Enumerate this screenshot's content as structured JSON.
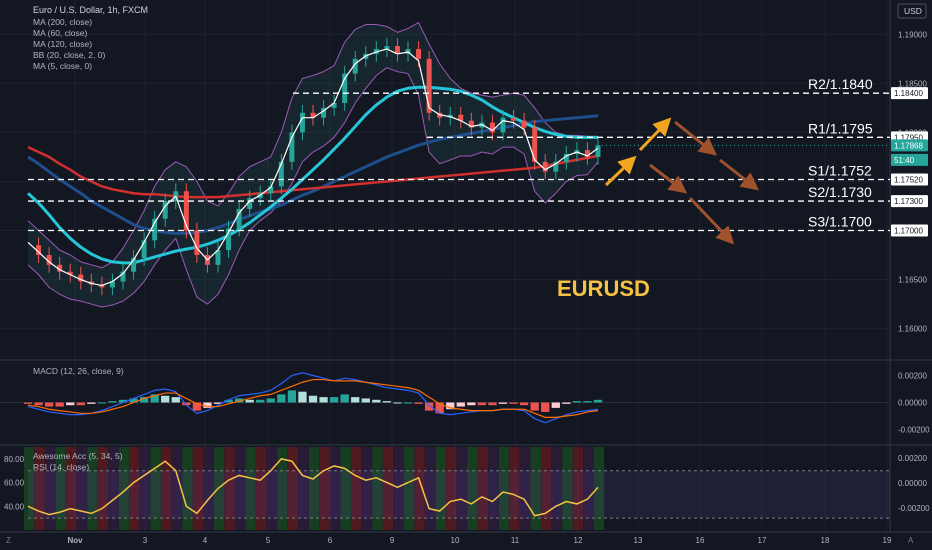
{
  "header": {
    "symbol_title": "Euro / U.S. Dollar, 1h, FXCM",
    "currency": "USD",
    "indicators": [
      "MA (200, close)",
      "MA (60, close)",
      "MA (120, close)",
      "BB (20, close, 2, 0)",
      "MA (5, close, 0)"
    ]
  },
  "main_label": "EURUSD",
  "colors": {
    "background": "#131722",
    "grid": "#1e222d",
    "text": "#d1d4dc",
    "ma200": "#d32f2f",
    "ma60": "#26c6da",
    "ma120": "#1e4e8c",
    "bb": "#9c59b6",
    "ma5": "#ffffff",
    "label_gold": "#f5c242",
    "bull": "#26a69a",
    "bear": "#ef5350",
    "arrow_up": "#f0a520",
    "arrow_down": "#a0522d"
  },
  "chart_data": [
    {
      "type": "line",
      "title": "EURUSD",
      "ylim": [
        1.157,
        1.1935
      ],
      "y_ticks": [
        "1.19000",
        "1.18500",
        "1.18000",
        "1.17500",
        "1.17000",
        "1.16500",
        "1.16000"
      ],
      "price_labels": [
        {
          "text": "1.18400",
          "value": 1.184,
          "bg": "#ffffff",
          "fg": "#131722"
        },
        {
          "text": "1.17950",
          "value": 1.1795,
          "bg": "#ffffff",
          "fg": "#131722"
        },
        {
          "text": "1.17868",
          "value": 1.17868,
          "bg": "#26a69a",
          "fg": "#ffffff"
        },
        {
          "text": "51:40",
          "value": 1.1772,
          "bg": "#26a69a",
          "fg": "#ffffff"
        },
        {
          "text": "1.17520",
          "value": 1.1752,
          "bg": "#ffffff",
          "fg": "#131722"
        },
        {
          "text": "1.17300",
          "value": 1.173,
          "bg": "#ffffff",
          "fg": "#131722"
        },
        {
          "text": "1.17000",
          "value": 1.17,
          "bg": "#ffffff",
          "fg": "#131722"
        }
      ],
      "levels": [
        {
          "name": "R2/1.1840",
          "value": 1.184
        },
        {
          "name": "R1/1.1795",
          "value": 1.1795
        },
        {
          "name": "S1/1.1752",
          "value": 1.1752
        },
        {
          "name": "S2/1.1730",
          "value": 1.173
        },
        {
          "name": "S3/1.1700",
          "value": 1.17
        }
      ],
      "price_path": [
        1.1685,
        1.1675,
        1.1665,
        1.1658,
        1.1655,
        1.1648,
        1.1645,
        1.1642,
        1.1648,
        1.1658,
        1.1672,
        1.169,
        1.1712,
        1.173,
        1.174,
        1.17,
        1.1675,
        1.1665,
        1.168,
        1.1702,
        1.1722,
        1.1733,
        1.1738,
        1.1745,
        1.177,
        1.18,
        1.182,
        1.1815,
        1.1825,
        1.183,
        1.186,
        1.1875,
        1.188,
        1.1885,
        1.1888,
        1.188,
        1.1885,
        1.1875,
        1.182,
        1.1815,
        1.1818,
        1.1812,
        1.1805,
        1.181,
        1.18,
        1.1815,
        1.1812,
        1.1805,
        1.177,
        1.176,
        1.177,
        1.1778,
        1.1782,
        1.1775,
        1.1787
      ],
      "ma5_path": [
        1.1688,
        1.1678,
        1.1668,
        1.166,
        1.1655,
        1.165,
        1.1646,
        1.1644,
        1.1648,
        1.1656,
        1.167,
        1.1688,
        1.1708,
        1.1725,
        1.1735,
        1.1705,
        1.1682,
        1.167,
        1.168,
        1.1698,
        1.1718,
        1.173,
        1.1736,
        1.1744,
        1.1768,
        1.1795,
        1.1815,
        1.1815,
        1.1822,
        1.183,
        1.1855,
        1.187,
        1.1878,
        1.1882,
        1.1885,
        1.188,
        1.1882,
        1.1873,
        1.1825,
        1.1818,
        1.1816,
        1.1812,
        1.1806,
        1.1808,
        1.1802,
        1.1812,
        1.181,
        1.1803,
        1.1772,
        1.1762,
        1.1768,
        1.1776,
        1.178,
        1.1776,
        1.1784
      ],
      "ma200_path": [
        1.1785,
        1.178,
        1.1775,
        1.1768,
        1.1762,
        1.1755,
        1.175,
        1.1745,
        1.1742,
        1.174,
        1.1738,
        1.1737,
        1.1737,
        1.1736,
        1.1735,
        1.1734,
        1.1734,
        1.1734,
        1.1734,
        1.1735,
        1.1736,
        1.1737,
        1.1738,
        1.1739,
        1.174,
        1.1741,
        1.1742,
        1.1743,
        1.1744,
        1.1745,
        1.1746,
        1.1747,
        1.1748,
        1.1749,
        1.175,
        1.1751,
        1.1752,
        1.1753,
        1.1754,
        1.1755,
        1.1756,
        1.1757,
        1.1758,
        1.1759,
        1.176,
        1.1761,
        1.1762,
        1.1763,
        1.1764,
        1.1766,
        1.1768,
        1.177,
        1.1772,
        1.1774,
        1.1776
      ],
      "ma120_path": [
        1.1775,
        1.1768,
        1.176,
        1.1752,
        1.1745,
        1.1738,
        1.173,
        1.1724,
        1.1718,
        1.1712,
        1.1706,
        1.1702,
        1.17,
        1.1698,
        1.1697,
        1.1697,
        1.1698,
        1.17,
        1.1703,
        1.1707,
        1.1711,
        1.1715,
        1.1719,
        1.1722,
        1.1726,
        1.1731,
        1.1736,
        1.174,
        1.1745,
        1.175,
        1.1755,
        1.176,
        1.1765,
        1.177,
        1.1775,
        1.1779,
        1.1783,
        1.1787,
        1.179,
        1.1793,
        1.1795,
        1.1797,
        1.1799,
        1.1801,
        1.1803,
        1.1805,
        1.1807,
        1.1809,
        1.1811,
        1.1812,
        1.1813,
        1.1814,
        1.1815,
        1.1816,
        1.1817
      ],
      "ma60_path": [
        1.1738,
        1.1728,
        1.1716,
        1.1703,
        1.1692,
        1.1683,
        1.1676,
        1.1671,
        1.1668,
        1.1667,
        1.1667,
        1.167,
        1.1673,
        1.1676,
        1.1679,
        1.1681,
        1.1683,
        1.1686,
        1.169,
        1.1695,
        1.1701,
        1.1708,
        1.1716,
        1.1724,
        1.1733,
        1.1742,
        1.1752,
        1.1762,
        1.1772,
        1.1783,
        1.1794,
        1.1806,
        1.1818,
        1.1828,
        1.1836,
        1.1842,
        1.1845,
        1.1846,
        1.1846,
        1.1845,
        1.1844,
        1.1842,
        1.1838,
        1.1833,
        1.1826,
        1.182,
        1.1815,
        1.181,
        1.1805,
        1.1801,
        1.1798,
        1.1796,
        1.1795,
        1.1795,
        1.1795
      ],
      "bb_upper_path": [
        1.171,
        1.17,
        1.169,
        1.168,
        1.1675,
        1.1668,
        1.1665,
        1.1662,
        1.1668,
        1.1682,
        1.17,
        1.172,
        1.1745,
        1.1762,
        1.177,
        1.1765,
        1.175,
        1.173,
        1.1725,
        1.1738,
        1.1755,
        1.1765,
        1.177,
        1.1775,
        1.18,
        1.1835,
        1.1855,
        1.1858,
        1.1862,
        1.1868,
        1.1892,
        1.1905,
        1.191,
        1.191,
        1.1908,
        1.1902,
        1.1906,
        1.1912,
        1.189,
        1.187,
        1.1855,
        1.1845,
        1.184,
        1.1838,
        1.1836,
        1.1838,
        1.184,
        1.1838,
        1.1825,
        1.181,
        1.18,
        1.1797,
        1.1797,
        1.1796,
        1.1796
      ],
      "bb_lower_path": [
        1.1665,
        1.1655,
        1.1642,
        1.1635,
        1.163,
        1.1628,
        1.1625,
        1.1622,
        1.1624,
        1.1628,
        1.1636,
        1.1648,
        1.1665,
        1.168,
        1.1692,
        1.166,
        1.1632,
        1.1625,
        1.1635,
        1.1655,
        1.168,
        1.17,
        1.171,
        1.1718,
        1.173,
        1.1748,
        1.177,
        1.178,
        1.1786,
        1.1795,
        1.181,
        1.183,
        1.1845,
        1.1858,
        1.1866,
        1.1862,
        1.186,
        1.1838,
        1.178,
        1.1768,
        1.1772,
        1.1776,
        1.1776,
        1.178,
        1.1778,
        1.1785,
        1.1785,
        1.1778,
        1.174,
        1.1728,
        1.1738,
        1.175,
        1.1756,
        1.1757,
        1.177
      ]
    },
    {
      "type": "bar",
      "title": "MACD (12, 26, close, 9)",
      "ylim": [
        -0.003,
        0.003
      ],
      "y_ticks": [
        "0.00200",
        "0.00000",
        "-0.00200"
      ],
      "histogram": [
        -0.0001,
        -0.0002,
        -0.0003,
        -0.0003,
        -0.0002,
        -0.0002,
        -0.0001,
        0.0,
        0.0001,
        0.0002,
        0.0003,
        0.0004,
        0.0006,
        0.0005,
        0.0004,
        -0.0002,
        -0.0006,
        -0.0004,
        -0.0001,
        0.0002,
        0.0003,
        0.0002,
        0.0002,
        0.0003,
        0.0006,
        0.0009,
        0.0008,
        0.0005,
        0.0004,
        0.0004,
        0.0006,
        0.0004,
        0.0003,
        0.0002,
        0.0001,
        0.0,
        0.0,
        -0.0001,
        -0.0006,
        -0.0008,
        -0.0005,
        -0.0003,
        -0.0002,
        -0.0002,
        -0.0002,
        -0.0001,
        -0.0001,
        -0.0002,
        -0.0006,
        -0.0007,
        -0.0004,
        -0.0001,
        0.0001,
        0.0001,
        0.0002
      ],
      "macd": [
        -0.0003,
        -0.0005,
        -0.0007,
        -0.0008,
        -0.0009,
        -0.0009,
        -0.0008,
        -0.0006,
        -0.0003,
        0.0,
        0.0003,
        0.0006,
        0.0009,
        0.001,
        0.0008,
        -0.0002,
        -0.0008,
        -0.0006,
        -0.0002,
        0.0002,
        0.0005,
        0.0006,
        0.0007,
        0.0009,
        0.0014,
        0.002,
        0.0022,
        0.002,
        0.0018,
        0.0016,
        0.0018,
        0.0017,
        0.0015,
        0.0013,
        0.0011,
        0.001,
        0.0009,
        0.0007,
        -0.0002,
        -0.0008,
        -0.0009,
        -0.0008,
        -0.0007,
        -0.0006,
        -0.0006,
        -0.0005,
        -0.0005,
        -0.0006,
        -0.0012,
        -0.0015,
        -0.0012,
        -0.0009,
        -0.0007,
        -0.0006,
        -0.0005
      ],
      "signal": [
        -0.0002,
        -0.0003,
        -0.0005,
        -0.0006,
        -0.0007,
        -0.0008,
        -0.0008,
        -0.0007,
        -0.0005,
        -0.0003,
        0.0,
        0.0003,
        0.0005,
        0.0007,
        0.0007,
        0.0003,
        -0.0001,
        -0.0003,
        -0.0003,
        -0.0001,
        0.0001,
        0.0003,
        0.0005,
        0.0006,
        0.0009,
        0.0012,
        0.0015,
        0.0017,
        0.0017,
        0.0016,
        0.0016,
        0.0016,
        0.0015,
        0.0014,
        0.0013,
        0.0012,
        0.0011,
        0.0009,
        0.0004,
        -0.0001,
        -0.0004,
        -0.0005,
        -0.0006,
        -0.0006,
        -0.0006,
        -0.0005,
        -0.0005,
        -0.0005,
        -0.0008,
        -0.0011,
        -0.0011,
        -0.001,
        -0.0009,
        -0.0007,
        -0.0006
      ]
    },
    {
      "type": "line",
      "title": "RSI (14, close)",
      "subtitle": "Awesome Acc (5, 34, 5)",
      "ylim": [
        20,
        90
      ],
      "y_ticks": [
        "80.00",
        "60.00",
        "40.00"
      ],
      "right_ticks": [
        "0.00200",
        "0.00000",
        "-0.00200"
      ],
      "bands": [
        70,
        30
      ],
      "values": [
        40,
        36,
        33,
        35,
        38,
        36,
        34,
        38,
        45,
        52,
        60,
        66,
        72,
        78,
        70,
        40,
        34,
        45,
        55,
        62,
        66,
        64,
        62,
        70,
        80,
        78,
        66,
        63,
        70,
        74,
        72,
        66,
        62,
        64,
        60,
        56,
        60,
        64,
        38,
        36,
        44,
        46,
        42,
        48,
        44,
        52,
        50,
        46,
        32,
        34,
        40,
        44,
        42,
        46,
        56
      ]
    }
  ],
  "x_axis": {
    "ticks": [
      {
        "label": "Nov",
        "bold": true
      },
      {
        "label": "3"
      },
      {
        "label": "4"
      },
      {
        "label": "5"
      },
      {
        "label": "6"
      },
      {
        "label": "9"
      },
      {
        "label": "10"
      },
      {
        "label": "11"
      },
      {
        "label": "12"
      },
      {
        "label": "13"
      },
      {
        "label": "16"
      },
      {
        "label": "17"
      },
      {
        "label": "18"
      },
      {
        "label": "19"
      }
    ]
  },
  "corner_labels": {
    "bottom_left": "Z",
    "bottom_right": "A"
  }
}
